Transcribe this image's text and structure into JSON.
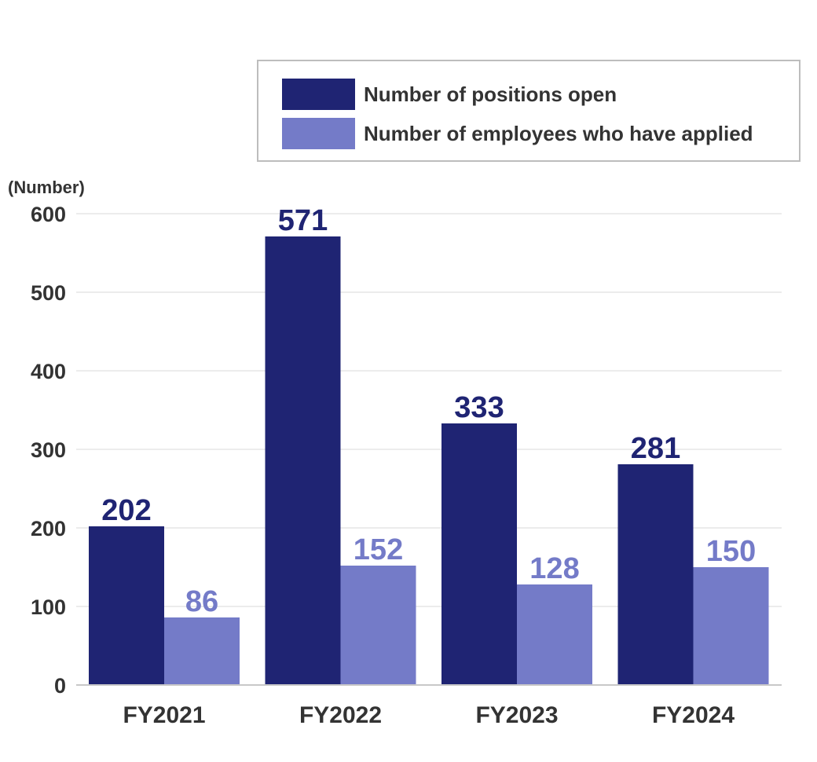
{
  "chart_data": {
    "type": "bar",
    "title": "",
    "xlabel": "",
    "ylabel": "(Number)",
    "ylim": [
      0,
      600
    ],
    "yticks": [
      0,
      100,
      200,
      300,
      400,
      500,
      600
    ],
    "categories": [
      "FY2021",
      "FY2022",
      "FY2023",
      "FY2024"
    ],
    "series": [
      {
        "name": "Number of positions open",
        "color": "#1f2473",
        "values": [
          202,
          571,
          333,
          281
        ]
      },
      {
        "name": "Number of employees who have applied",
        "color": "#747bc8",
        "values": [
          86,
          152,
          128,
          150
        ]
      }
    ],
    "grid": true,
    "legend_position": "top-right"
  }
}
